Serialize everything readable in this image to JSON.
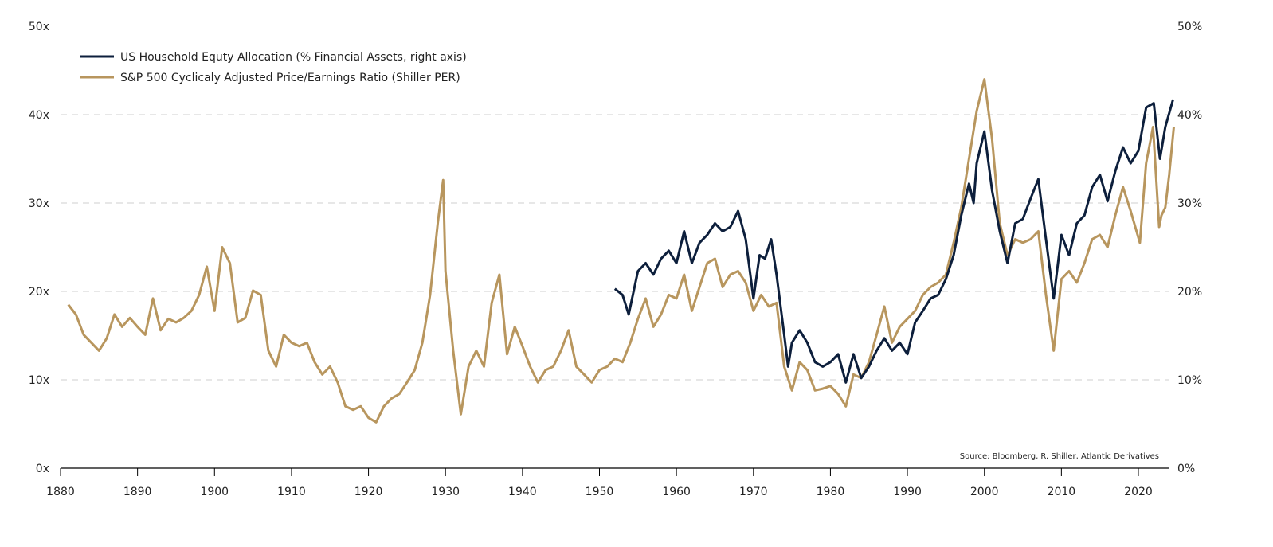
{
  "chart_data": {
    "type": "line",
    "title": "",
    "xlabel": "",
    "ylabel": "",
    "y2label": "",
    "xlim": [
      1880,
      2025
    ],
    "ylim": [
      0,
      50
    ],
    "y2lim": [
      0,
      50
    ],
    "x_ticks": [
      1880,
      1890,
      1900,
      1910,
      1920,
      1930,
      1940,
      1950,
      1960,
      1970,
      1980,
      1990,
      2000,
      2010,
      2020
    ],
    "x_tick_labels": [
      "1880",
      "1890",
      "1900",
      "1910",
      "1920",
      "1930",
      "1940",
      "1950",
      "1960",
      "1970",
      "1980",
      "1990",
      "2000",
      "2010",
      "2020"
    ],
    "y_ticks": [
      0,
      10,
      20,
      30,
      40,
      50
    ],
    "y_tick_labels": [
      "0x",
      "10x",
      "20x",
      "30x",
      "40x",
      "50x"
    ],
    "y2_tick_labels": [
      "0%",
      "10%",
      "20%",
      "30%",
      "40%",
      "50%"
    ],
    "grid": "horizontal dashed",
    "legend_position": "top-left",
    "source": "Source: Bloomberg, R. Shiller, Atlantic Derivatives",
    "series": [
      {
        "name": "US Household Equty Allocation (% Financial Assets, right axis)",
        "axis": "right",
        "color": "#0d1f3c",
        "x": [
          1952,
          1953,
          1953.8,
          1955,
          1956,
          1957,
          1958,
          1959,
          1960,
          1961,
          1962,
          1963,
          1964,
          1965,
          1966,
          1967,
          1968,
          1969,
          1970,
          1970.8,
          1971.5,
          1972.3,
          1973,
          1974,
          1974.5,
          1975,
          1976,
          1977,
          1978,
          1979,
          1980,
          1981,
          1982,
          1983,
          1984,
          1985,
          1986,
          1987,
          1988,
          1989,
          1990,
          1991,
          1992,
          1993,
          1994,
          1995,
          1996,
          1997,
          1998,
          1998.6,
          1999,
          2000,
          2001,
          2002,
          2003,
          2004,
          2005,
          2006,
          2007,
          2008,
          2009,
          2010,
          2011,
          2012,
          2013,
          2014,
          2015,
          2016,
          2017,
          2018,
          2019,
          2020,
          2021,
          2022,
          2022.8,
          2023.5,
          2024.5
        ],
        "values": [
          20.3,
          19.6,
          17.4,
          22.3,
          23.2,
          21.9,
          23.7,
          24.6,
          23.2,
          26.8,
          23.2,
          25.5,
          26.4,
          27.7,
          26.8,
          27.3,
          29.1,
          25.9,
          19.2,
          24.1,
          23.7,
          25.9,
          21.9,
          15.1,
          11.5,
          14.2,
          15.6,
          14.2,
          12.0,
          11.5,
          12.0,
          12.9,
          9.7,
          12.9,
          10.2,
          11.5,
          13.3,
          14.7,
          13.3,
          14.2,
          12.9,
          16.5,
          17.8,
          19.2,
          19.6,
          21.4,
          24.1,
          28.6,
          32.2,
          30.0,
          34.5,
          38.1,
          31.4,
          26.8,
          23.2,
          27.7,
          28.2,
          30.5,
          32.7,
          25.9,
          19.2,
          26.4,
          24.1,
          27.7,
          28.6,
          31.8,
          33.2,
          30.2,
          33.6,
          36.3,
          34.5,
          35.9,
          40.8,
          41.3,
          35.0,
          38.6,
          41.7
        ]
      },
      {
        "name": "S&P 500 Cyclicaly Adjusted Price/Earnings Ratio (Shiller PER)",
        "axis": "left",
        "color": "#b8965e",
        "x": [
          1881,
          1882,
          1883,
          1884,
          1885,
          1886,
          1887,
          1888,
          1889,
          1890,
          1891,
          1892,
          1893,
          1894,
          1895,
          1896,
          1897,
          1898,
          1899,
          1900,
          1901,
          1902,
          1903,
          1904,
          1905,
          1906,
          1907,
          1908,
          1909,
          1910,
          1911,
          1912,
          1913,
          1914,
          1915,
          1916,
          1917,
          1918,
          1919,
          1920,
          1921,
          1922,
          1923,
          1924,
          1925,
          1926,
          1927,
          1928,
          1929,
          1929.7,
          1930,
          1931,
          1932,
          1933,
          1934,
          1935,
          1936,
          1937,
          1938,
          1939,
          1940,
          1941,
          1942,
          1943,
          1944,
          1945,
          1946,
          1947,
          1948,
          1949,
          1950,
          1951,
          1952,
          1953,
          1954,
          1955,
          1956,
          1957,
          1958,
          1959,
          1960,
          1961,
          1962,
          1963,
          1964,
          1965,
          1966,
          1967,
          1968,
          1969,
          1970,
          1971,
          1972,
          1973,
          1974,
          1975,
          1976,
          1977,
          1978,
          1979,
          1980,
          1981,
          1982,
          1983,
          1984,
          1985,
          1986,
          1987,
          1988,
          1989,
          1990,
          1991,
          1992,
          1993,
          1994,
          1995,
          1996,
          1997,
          1998,
          1999,
          2000,
          2001,
          2002,
          2003,
          2004,
          2005,
          2006,
          2007,
          2008,
          2009,
          2010,
          2011,
          2012,
          2013,
          2014,
          2015,
          2016,
          2017,
          2018,
          2019,
          2020.2,
          2021,
          2021.9,
          2022.7,
          2023,
          2023.5,
          2024,
          2024.6
        ],
        "values": [
          18.5,
          17.4,
          15.1,
          14.2,
          13.3,
          14.7,
          17.4,
          16.0,
          17.0,
          16.0,
          15.1,
          19.2,
          15.6,
          16.9,
          16.5,
          17.0,
          17.8,
          19.6,
          22.8,
          17.8,
          25.0,
          23.2,
          16.5,
          17.0,
          20.1,
          19.6,
          13.3,
          11.5,
          15.1,
          14.2,
          13.8,
          14.2,
          12.0,
          10.6,
          11.5,
          9.7,
          7.0,
          6.6,
          7.0,
          5.7,
          5.2,
          7.0,
          7.9,
          8.4,
          9.7,
          11.1,
          14.2,
          19.6,
          27.7,
          32.6,
          22.3,
          13.3,
          6.1,
          11.5,
          13.3,
          11.5,
          18.7,
          21.9,
          12.9,
          16.0,
          13.8,
          11.5,
          9.7,
          11.1,
          11.5,
          13.3,
          15.6,
          11.5,
          10.6,
          9.7,
          11.1,
          11.5,
          12.4,
          12.0,
          14.2,
          16.9,
          19.2,
          16.0,
          17.4,
          19.6,
          19.2,
          21.9,
          17.8,
          20.5,
          23.2,
          23.7,
          20.5,
          21.9,
          22.3,
          21.0,
          17.8,
          19.6,
          18.3,
          18.7,
          11.5,
          8.8,
          12.0,
          11.1,
          8.8,
          9.0,
          9.3,
          8.4,
          7.0,
          10.6,
          10.2,
          12.0,
          15.1,
          18.3,
          14.2,
          16.0,
          16.9,
          17.8,
          19.6,
          20.5,
          21.0,
          21.9,
          25.5,
          29.5,
          35.0,
          40.4,
          44.0,
          37.2,
          27.7,
          24.1,
          25.9,
          25.5,
          25.9,
          26.8,
          19.6,
          13.3,
          21.4,
          22.3,
          21.0,
          23.2,
          25.9,
          26.4,
          25.0,
          28.6,
          31.8,
          29.1,
          25.5,
          34.5,
          38.6,
          27.3,
          28.6,
          29.5,
          33.2,
          38.6
        ]
      }
    ]
  }
}
